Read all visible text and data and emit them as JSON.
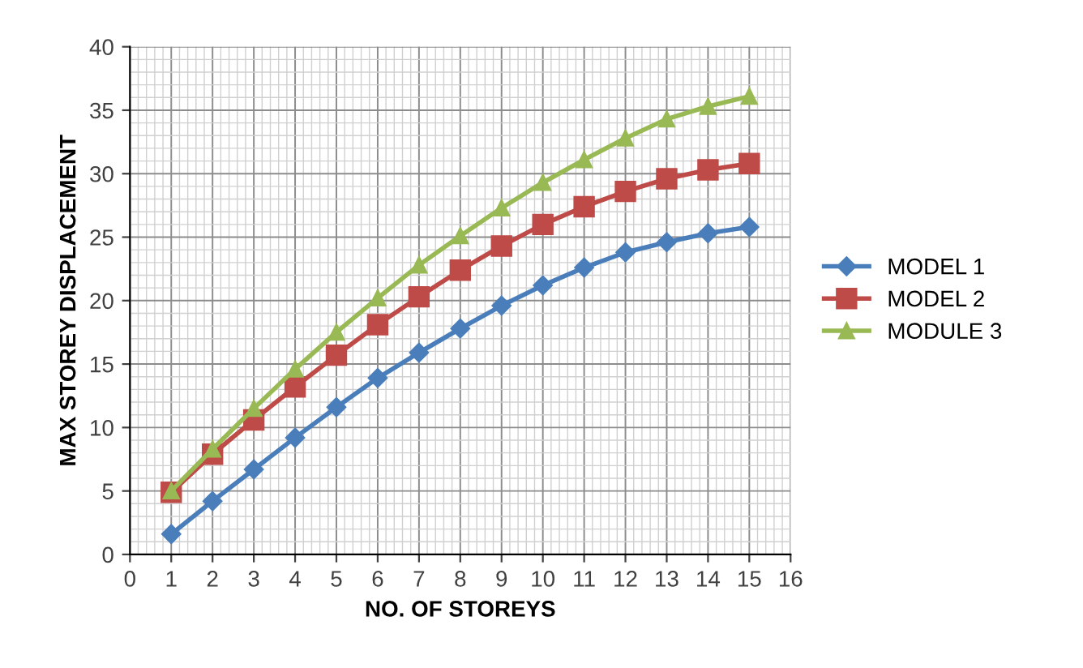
{
  "chart_data": {
    "type": "line",
    "xlabel": "NO. OF STOREYS",
    "ylabel": "MAX STOREY DISPLACEMENT",
    "x": [
      1,
      2,
      3,
      4,
      5,
      6,
      7,
      8,
      9,
      10,
      11,
      12,
      13,
      14,
      15
    ],
    "series": [
      {
        "name": "MODEL 1",
        "color": "#4a7ebb",
        "marker": "diamond",
        "values": [
          1.6,
          4.2,
          6.7,
          9.2,
          11.6,
          13.9,
          15.9,
          17.8,
          19.6,
          21.2,
          22.6,
          23.8,
          24.6,
          25.3,
          25.8
        ]
      },
      {
        "name": "MODEL 2",
        "color": "#be4b48",
        "marker": "square",
        "values": [
          4.9,
          7.9,
          10.6,
          13.2,
          15.7,
          18.1,
          20.3,
          22.4,
          24.3,
          26.0,
          27.4,
          28.6,
          29.6,
          30.3,
          30.8
        ]
      },
      {
        "name": "MODULE 3",
        "color": "#98b954",
        "marker": "triangle",
        "values": [
          5.0,
          8.3,
          11.5,
          14.6,
          17.5,
          20.2,
          22.8,
          25.1,
          27.3,
          29.3,
          31.1,
          32.8,
          34.3,
          35.3,
          36.1
        ]
      }
    ],
    "xlim": [
      0,
      16
    ],
    "xticks": [
      0,
      1,
      2,
      3,
      4,
      5,
      6,
      7,
      8,
      9,
      10,
      11,
      12,
      13,
      14,
      15,
      16
    ],
    "ylim": [
      0,
      40
    ],
    "yticks": [
      0,
      5,
      10,
      15,
      20,
      25,
      30,
      35,
      40
    ],
    "grid": true,
    "legend": "right",
    "line_style": "solid"
  }
}
